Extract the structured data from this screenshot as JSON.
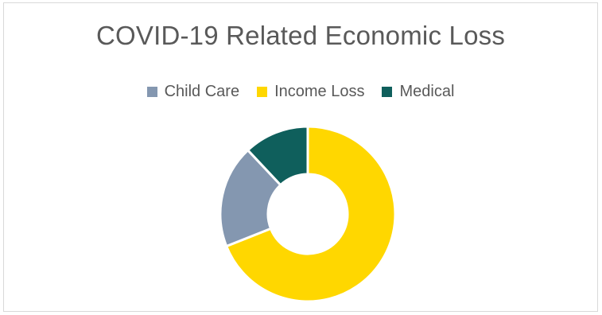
{
  "chart_data": {
    "type": "pie",
    "variant": "donut",
    "title": "COVID-19 Related Economic Loss",
    "legend_position": "top",
    "categories": [
      "Child Care",
      "Income Loss",
      "Medical"
    ],
    "values": [
      19,
      69,
      12
    ],
    "colors": [
      "#8497b0",
      "#ffd700",
      "#0f5f5c"
    ],
    "start_at": "top",
    "drawing_order": [
      1,
      0,
      2
    ]
  }
}
